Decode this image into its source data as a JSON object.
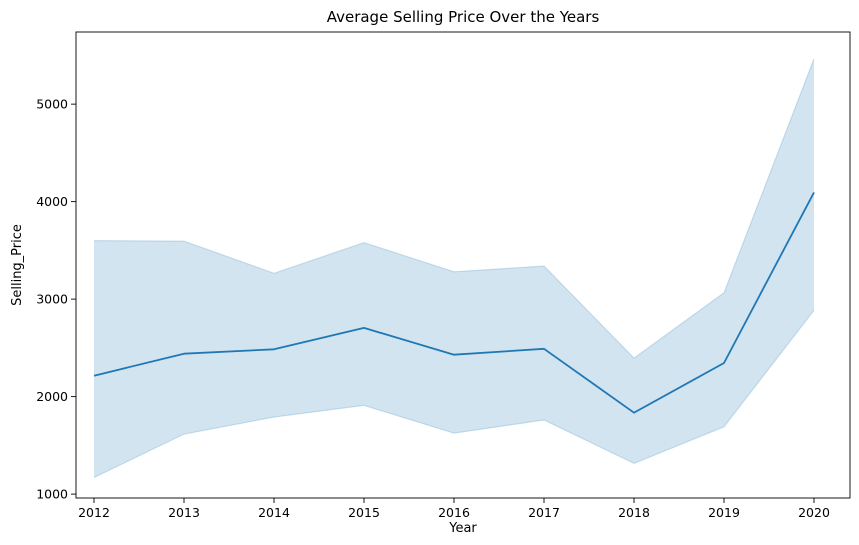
{
  "chart_data": {
    "type": "line",
    "title": "Average Selling Price Over the Years",
    "xlabel": "Year",
    "ylabel": "Selling_Price",
    "x": [
      2012,
      2013,
      2014,
      2015,
      2016,
      2017,
      2018,
      2019,
      2020
    ],
    "xticks": [
      "2012",
      "2013",
      "2014",
      "2015",
      "2016",
      "2017",
      "2018",
      "2019",
      "2020"
    ],
    "yticks": [
      "1000",
      "2000",
      "3000",
      "4000",
      "5000"
    ],
    "xlim": [
      2011.8,
      2020.4
    ],
    "ylim": [
      960,
      5740
    ],
    "grid": false,
    "series": [
      {
        "values": [
          2215,
          2440,
          2485,
          2705,
          2430,
          2490,
          1835,
          2345,
          4095
        ],
        "ci_lower": [
          1170,
          1615,
          1790,
          1910,
          1625,
          1760,
          1315,
          1690,
          2885
        ],
        "ci_upper": [
          3600,
          3595,
          3265,
          3580,
          3280,
          3340,
          2395,
          3065,
          5465
        ],
        "color": "#1f77b4",
        "band_color": "#1f77b4"
      }
    ]
  }
}
